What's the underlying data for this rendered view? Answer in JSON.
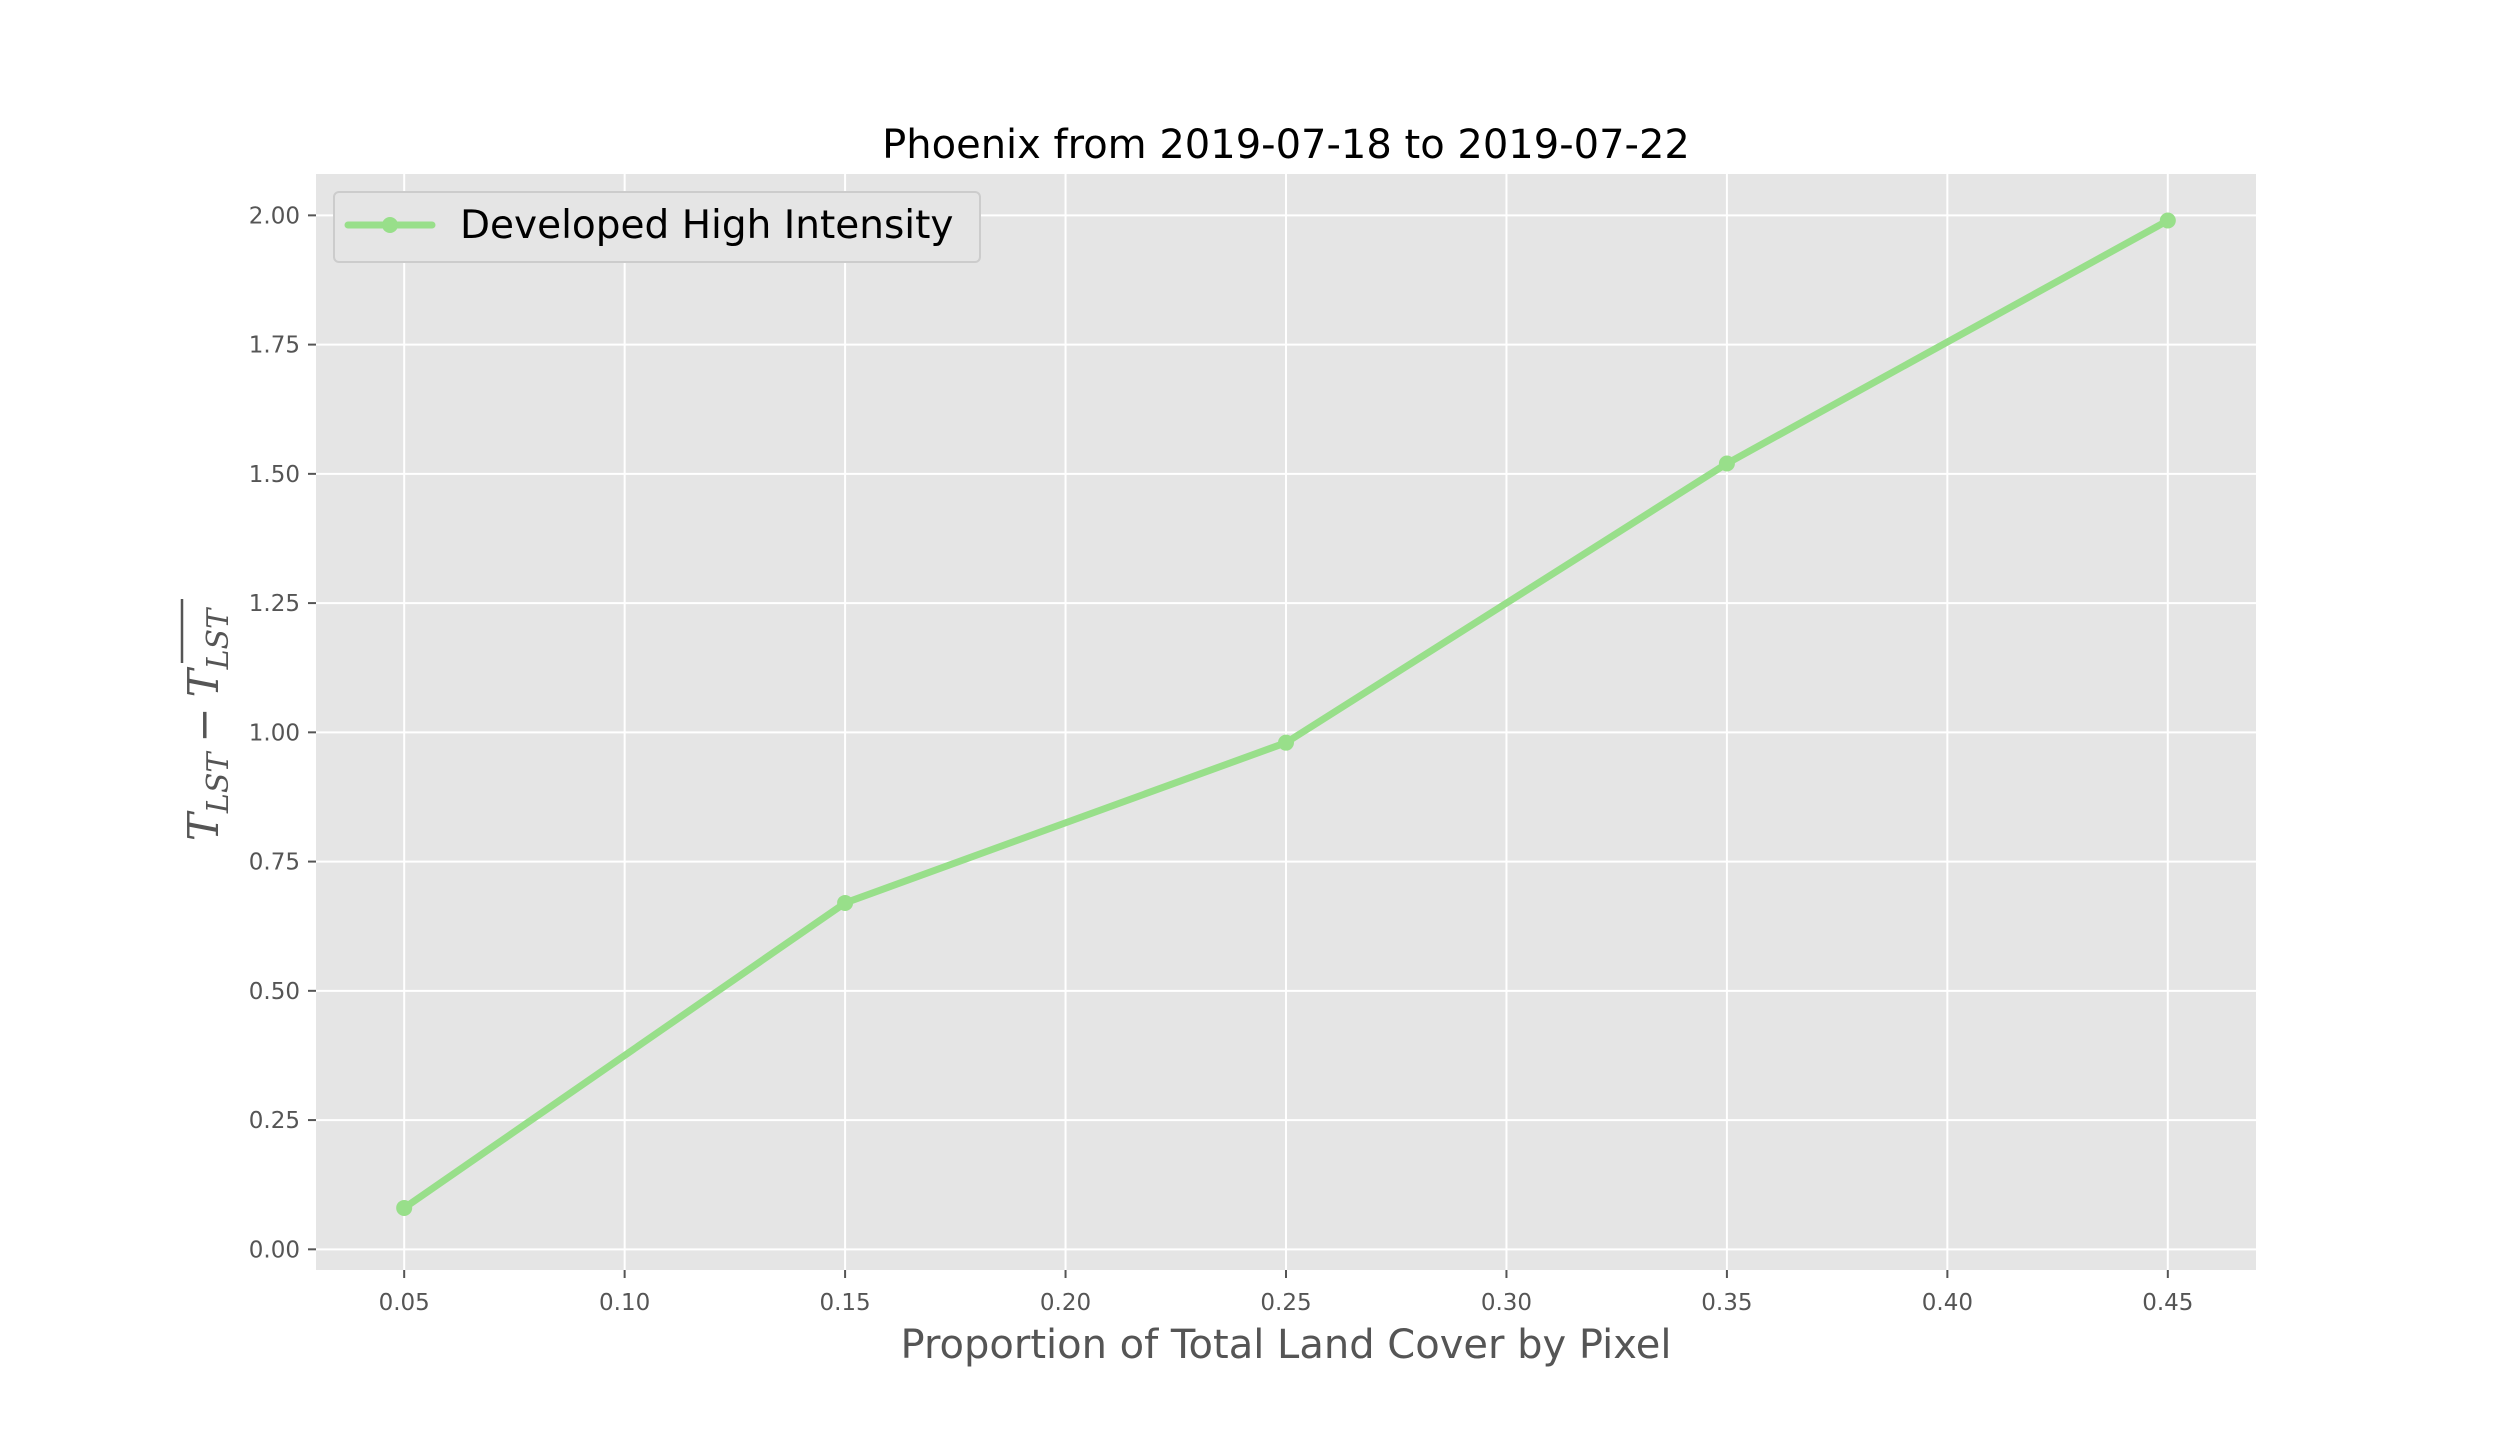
{
  "chart_data": {
    "type": "line",
    "title": "Phoenix from 2019-07-18 to 2019-07-22",
    "xlabel": "Proportion of Total Land Cover by Pixel",
    "ylabel": {
      "main": "T",
      "sub": "LST",
      "operator": "−",
      "bar_main": "T",
      "bar_sub": "LST"
    },
    "xlim": [
      0.03,
      0.47
    ],
    "ylim": [
      -0.04,
      2.08
    ],
    "xticks": [
      0.05,
      0.1,
      0.15,
      0.2,
      0.25,
      0.3,
      0.35,
      0.4,
      0.45
    ],
    "xtick_labels": [
      "0.05",
      "0.10",
      "0.15",
      "0.20",
      "0.25",
      "0.30",
      "0.35",
      "0.40",
      "0.45"
    ],
    "yticks": [
      0.0,
      0.25,
      0.5,
      0.75,
      1.0,
      1.25,
      1.5,
      1.75,
      2.0
    ],
    "ytick_labels": [
      "0.00",
      "0.25",
      "0.50",
      "0.75",
      "1.00",
      "1.25",
      "1.50",
      "1.75",
      "2.00"
    ],
    "grid": true,
    "legend_position": "top-left",
    "series": [
      {
        "name": "Developed High Intensity",
        "color": "#98df8a",
        "x": [
          0.05,
          0.15,
          0.25,
          0.35,
          0.45
        ],
        "y": [
          0.08,
          0.67,
          0.98,
          1.52,
          1.99
        ]
      }
    ]
  }
}
